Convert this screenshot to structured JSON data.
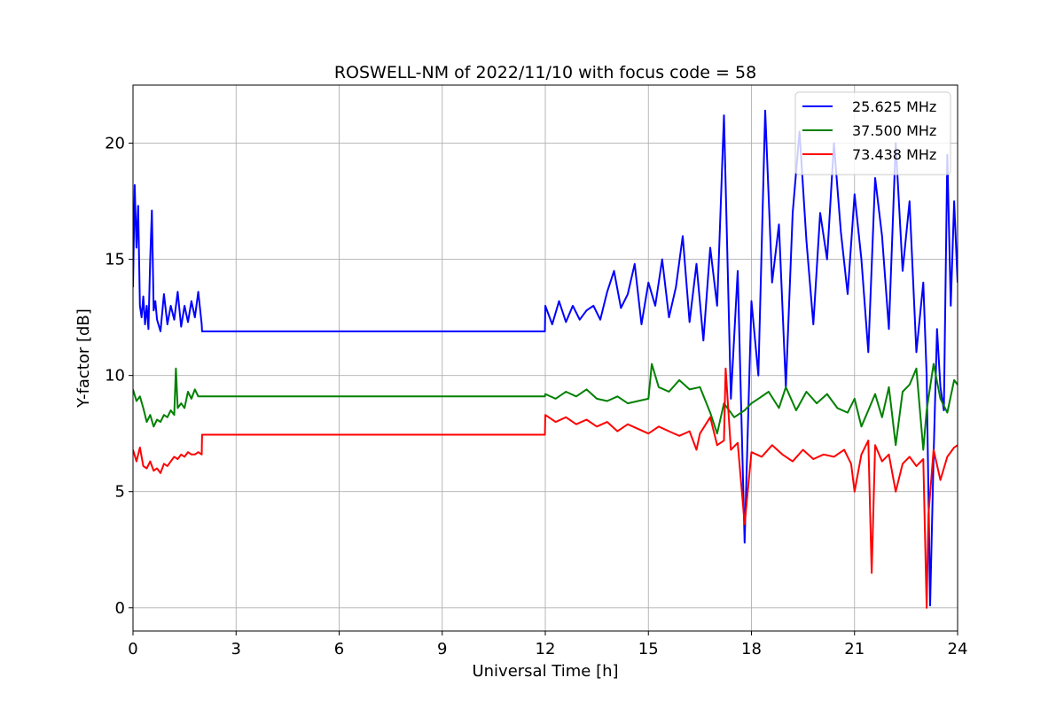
{
  "chart_data": {
    "type": "line",
    "title": "ROSWELL-NM of 2022/11/10 with focus code = 58",
    "xlabel": "Universal Time [h]",
    "ylabel": "Y-factor [dB]",
    "xlim": [
      0,
      24
    ],
    "ylim": [
      -1,
      22.5
    ],
    "xticks": [
      0,
      3,
      6,
      9,
      12,
      15,
      18,
      21,
      24
    ],
    "yticks": [
      0,
      5,
      10,
      15,
      20
    ],
    "grid": true,
    "legend_position": "top-right",
    "series": [
      {
        "name": "25.625 MHz",
        "color": "#0000ff",
        "x": [
          0,
          0.05,
          0.1,
          0.15,
          0.2,
          0.25,
          0.3,
          0.35,
          0.4,
          0.45,
          0.5,
          0.55,
          0.6,
          0.65,
          0.7,
          0.8,
          0.9,
          1.0,
          1.1,
          1.2,
          1.3,
          1.4,
          1.5,
          1.6,
          1.7,
          1.8,
          1.9,
          2.0,
          2.01,
          11.99,
          12.0,
          12.2,
          12.4,
          12.6,
          12.8,
          13.0,
          13.2,
          13.4,
          13.6,
          13.8,
          14.0,
          14.2,
          14.4,
          14.6,
          14.8,
          15.0,
          15.2,
          15.4,
          15.6,
          15.8,
          16.0,
          16.2,
          16.4,
          16.6,
          16.8,
          17.0,
          17.2,
          17.4,
          17.6,
          17.8,
          18.0,
          18.2,
          18.4,
          18.6,
          18.8,
          19.0,
          19.2,
          19.4,
          19.6,
          19.8,
          20.0,
          20.2,
          20.4,
          20.6,
          20.8,
          21.0,
          21.2,
          21.4,
          21.6,
          21.8,
          22.0,
          22.2,
          22.4,
          22.6,
          22.8,
          23.0,
          23.1,
          23.2,
          23.3,
          23.4,
          23.5,
          23.6,
          23.7,
          23.8,
          23.9,
          24.0
        ],
        "values": [
          13.8,
          18.2,
          15.5,
          17.3,
          13.0,
          12.5,
          13.4,
          12.2,
          13.0,
          12.0,
          15.0,
          17.1,
          12.8,
          13.2,
          12.4,
          11.9,
          13.5,
          12.2,
          13.0,
          12.4,
          13.6,
          12.1,
          13.0,
          12.3,
          13.2,
          12.5,
          13.6,
          12.2,
          11.9,
          11.9,
          13.0,
          12.2,
          13.2,
          12.3,
          13.0,
          12.4,
          12.8,
          13.0,
          12.4,
          13.6,
          14.5,
          12.9,
          13.5,
          14.8,
          12.2,
          14.0,
          13.0,
          15.0,
          12.5,
          13.8,
          16.0,
          12.3,
          14.8,
          11.5,
          15.5,
          13.0,
          21.2,
          9.0,
          14.5,
          2.8,
          13.2,
          10.0,
          21.4,
          14.0,
          16.5,
          9.5,
          17.0,
          20.5,
          15.8,
          12.2,
          17.0,
          15.0,
          20.0,
          16.2,
          13.5,
          17.8,
          15.0,
          11.0,
          18.5,
          16.0,
          12.0,
          20.0,
          14.5,
          17.5,
          11.0,
          14.0,
          10.0,
          0.1,
          6.5,
          12.0,
          9.5,
          8.5,
          19.5,
          13.0,
          17.5,
          14.0
        ]
      },
      {
        "name": "37.500 MHz",
        "color": "#008000",
        "x": [
          0,
          0.1,
          0.2,
          0.3,
          0.4,
          0.5,
          0.6,
          0.7,
          0.8,
          0.9,
          1.0,
          1.1,
          1.2,
          1.25,
          1.3,
          1.4,
          1.5,
          1.6,
          1.7,
          1.8,
          1.9,
          2.0,
          2.01,
          11.99,
          12.0,
          12.3,
          12.6,
          12.9,
          13.2,
          13.5,
          13.8,
          14.1,
          14.4,
          14.7,
          15.0,
          15.1,
          15.3,
          15.6,
          15.9,
          16.2,
          16.5,
          16.8,
          17.0,
          17.2,
          17.5,
          17.8,
          18.0,
          18.2,
          18.5,
          18.8,
          19.0,
          19.3,
          19.6,
          19.9,
          20.2,
          20.5,
          20.8,
          21.0,
          21.2,
          21.4,
          21.6,
          21.8,
          22.0,
          22.2,
          22.4,
          22.6,
          22.8,
          23.0,
          23.1,
          23.3,
          23.5,
          23.7,
          23.9,
          24.0
        ],
        "values": [
          9.4,
          8.9,
          9.1,
          8.6,
          8.0,
          8.3,
          7.8,
          8.1,
          8.0,
          8.3,
          8.2,
          8.5,
          8.3,
          10.3,
          8.6,
          8.8,
          8.6,
          9.3,
          9.0,
          9.4,
          9.1,
          9.1,
          9.1,
          9.1,
          9.2,
          9.0,
          9.3,
          9.1,
          9.4,
          9.0,
          8.9,
          9.1,
          8.8,
          8.9,
          9.0,
          10.5,
          9.5,
          9.3,
          9.8,
          9.4,
          9.5,
          8.4,
          7.5,
          8.8,
          8.2,
          8.5,
          8.8,
          9.0,
          9.3,
          8.6,
          9.5,
          8.5,
          9.3,
          8.8,
          9.2,
          8.6,
          8.4,
          9.0,
          7.8,
          8.5,
          9.2,
          8.2,
          9.5,
          7.0,
          9.3,
          9.6,
          10.3,
          6.8,
          8.5,
          10.5,
          9.0,
          8.4,
          9.8,
          9.6
        ]
      },
      {
        "name": "73.438 MHz",
        "color": "#ff0000",
        "x": [
          0,
          0.1,
          0.2,
          0.3,
          0.4,
          0.5,
          0.6,
          0.7,
          0.8,
          0.9,
          1.0,
          1.1,
          1.2,
          1.3,
          1.4,
          1.5,
          1.6,
          1.7,
          1.8,
          1.9,
          2.0,
          2.01,
          11.99,
          12.0,
          12.3,
          12.6,
          12.9,
          13.2,
          13.5,
          13.8,
          14.1,
          14.4,
          14.7,
          15.0,
          15.3,
          15.6,
          15.9,
          16.2,
          16.4,
          16.5,
          16.8,
          17.0,
          17.2,
          17.25,
          17.4,
          17.6,
          17.8,
          18.0,
          18.3,
          18.6,
          18.9,
          19.2,
          19.5,
          19.8,
          20.1,
          20.4,
          20.7,
          20.9,
          21.0,
          21.2,
          21.4,
          21.5,
          21.6,
          21.8,
          22.0,
          22.2,
          22.4,
          22.6,
          22.8,
          23.0,
          23.1,
          23.15,
          23.3,
          23.5,
          23.7,
          23.9,
          24.0
        ],
        "values": [
          6.8,
          6.3,
          6.9,
          6.1,
          6.0,
          6.3,
          5.9,
          6.0,
          5.8,
          6.2,
          6.1,
          6.3,
          6.5,
          6.4,
          6.6,
          6.5,
          6.7,
          6.6,
          6.6,
          6.7,
          6.6,
          7.45,
          7.45,
          8.3,
          8.0,
          8.2,
          7.9,
          8.1,
          7.8,
          8.0,
          7.6,
          7.9,
          7.7,
          7.5,
          7.8,
          7.6,
          7.4,
          7.6,
          6.8,
          7.5,
          8.2,
          7.0,
          7.2,
          10.3,
          6.8,
          7.1,
          3.6,
          6.7,
          6.5,
          7.0,
          6.6,
          6.3,
          6.8,
          6.4,
          6.6,
          6.5,
          6.8,
          6.2,
          5.0,
          6.6,
          7.2,
          1.5,
          7.0,
          6.3,
          6.6,
          5.0,
          6.2,
          6.5,
          6.1,
          6.4,
          0.0,
          4.0,
          6.8,
          5.5,
          6.5,
          6.9,
          7.0
        ]
      }
    ]
  }
}
